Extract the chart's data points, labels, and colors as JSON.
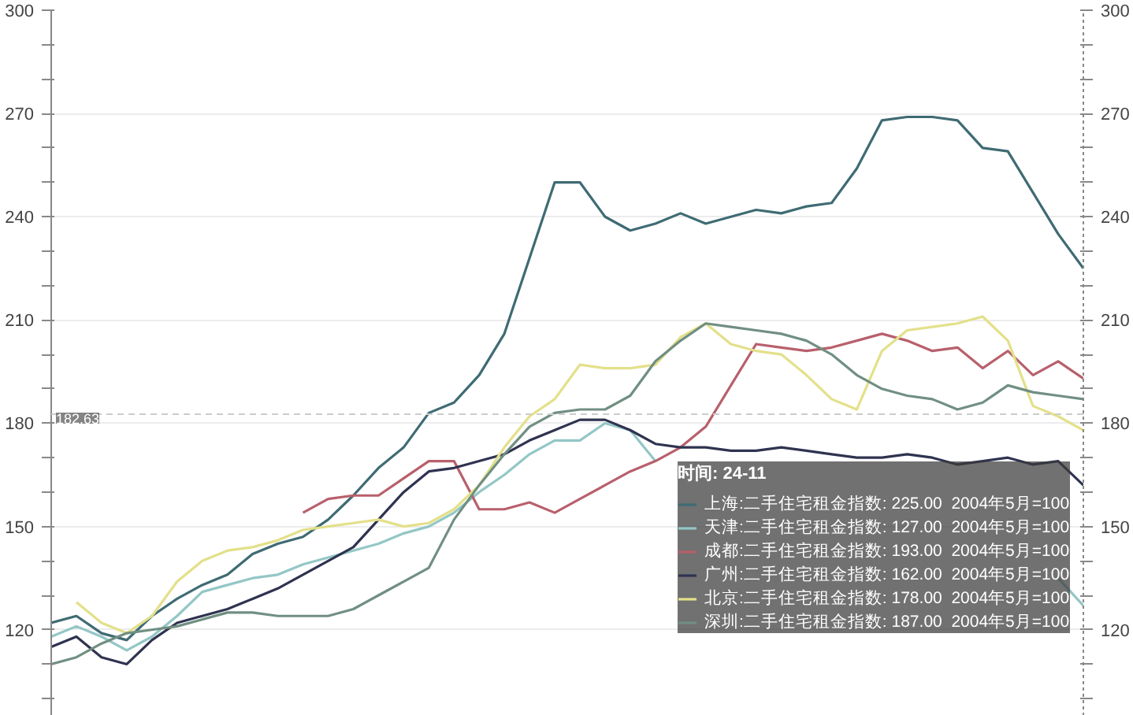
{
  "chart_data": {
    "type": "line",
    "legend_title": "时间: 24-11",
    "categories": [
      null,
      null,
      null,
      null,
      null,
      null,
      null,
      null,
      null,
      null,
      null,
      null,
      null,
      null,
      null,
      null,
      null,
      null,
      null,
      null,
      null,
      null,
      null,
      null,
      null,
      null,
      null,
      null,
      null,
      null,
      null,
      null,
      null,
      null,
      null,
      null,
      null,
      null,
      null,
      null,
      null,
      null
    ],
    "series": [
      {
        "name": "上海:二手住宅租金指数: 225.00  2004年5月=100",
        "color": "#3f6b73",
        "values": [
          122,
          124,
          119,
          117,
          124,
          129,
          133,
          136,
          142,
          145,
          147,
          152,
          159,
          167,
          173,
          183,
          186,
          194,
          206,
          228,
          250,
          250,
          240,
          236,
          238,
          241,
          238,
          240,
          242,
          241,
          243,
          244,
          254,
          268,
          269,
          269,
          268,
          260,
          259,
          247,
          235,
          225
        ]
      },
      {
        "name": "天津:二手住宅租金指数: 127.00  2004年5月=100",
        "color": "#93c7c6",
        "values": [
          118,
          121,
          118,
          114,
          118,
          124,
          131,
          133,
          135,
          136,
          139,
          141,
          143,
          145,
          148,
          150,
          154,
          160,
          165,
          171,
          175,
          175,
          180,
          178,
          169,
          null,
          null,
          null,
          null,
          null,
          null,
          null,
          null,
          null,
          null,
          null,
          null,
          null,
          null,
          null,
          135,
          127
        ]
      },
      {
        "name": "成都:二手住宅租金指数: 193.00  2004年5月=100",
        "color": "#b8606c",
        "values": [
          null,
          null,
          null,
          null,
          null,
          null,
          null,
          null,
          null,
          null,
          154,
          158,
          159,
          159,
          164,
          169,
          169,
          155,
          155,
          157,
          154,
          158,
          162,
          166,
          169,
          173,
          179,
          191,
          203,
          202,
          201,
          202,
          204,
          206,
          204,
          201,
          202,
          196,
          201,
          194,
          198,
          193
        ]
      },
      {
        "name": "广州:二手住宅租金指数: 162.00  2004年5月=100",
        "color": "#2f3350",
        "values": [
          115,
          118,
          112,
          110,
          117,
          122,
          124,
          126,
          129,
          132,
          136,
          140,
          144,
          152,
          160,
          166,
          167,
          169,
          171,
          175,
          178,
          181,
          181,
          178,
          174,
          173,
          173,
          172,
          172,
          173,
          172,
          171,
          170,
          170,
          171,
          170,
          168,
          169,
          170,
          168,
          169,
          162
        ]
      },
      {
        "name": "北京:二手住宅租金指数: 178.00  2004年5月=100",
        "color": "#e3e08a",
        "values": [
          null,
          128,
          122,
          119,
          124,
          134,
          140,
          143,
          144,
          146,
          149,
          150,
          151,
          152,
          150,
          151,
          155,
          162,
          173,
          182,
          187,
          197,
          196,
          196,
          197,
          205,
          209,
          203,
          201,
          200,
          194,
          187,
          184,
          201,
          207,
          208,
          209,
          211,
          204,
          185,
          182,
          178
        ]
      },
      {
        "name": "深圳:二手住宅租金指数: 187.00  2004年5月=100",
        "color": "#708f82",
        "values": [
          110,
          112,
          116,
          119,
          120,
          121,
          123,
          125,
          125,
          124,
          124,
          124,
          126,
          130,
          134,
          138,
          152,
          162,
          171,
          179,
          183,
          184,
          184,
          188,
          198,
          204,
          209,
          208,
          207,
          206,
          204,
          200,
          194,
          190,
          188,
          187,
          184,
          186,
          191,
          189,
          188,
          187
        ]
      }
    ],
    "ylim": [
      95,
      300
    ],
    "yticks": [
      {
        "value": 100,
        "label": null
      },
      {
        "value": 110,
        "label": null
      },
      120,
      {
        "value": 130,
        "label": null
      },
      {
        "value": 140,
        "label": null
      },
      150,
      {
        "value": 160,
        "label": null
      },
      {
        "value": 170,
        "label": null
      },
      180,
      {
        "value": 190,
        "label": null
      },
      {
        "value": 200,
        "label": null
      },
      210,
      {
        "value": 220,
        "label": null
      },
      {
        "value": 230,
        "label": null
      },
      240,
      {
        "value": 250,
        "label": null
      },
      {
        "value": 260,
        "label": null
      },
      270,
      {
        "value": 280,
        "label": null
      },
      {
        "value": 290,
        "label": null
      },
      300
    ],
    "y2lim": [
      95,
      300
    ],
    "y2ticks": [
      {
        "value": 100,
        "label": null
      },
      {
        "value": 110,
        "label": null
      },
      120,
      {
        "value": 130,
        "label": null
      },
      {
        "value": 140,
        "label": null
      },
      150,
      {
        "value": 160,
        "label": null
      },
      {
        "value": 170,
        "label": null
      },
      180,
      {
        "value": 190,
        "label": null
      },
      {
        "value": 200,
        "label": null
      },
      210,
      {
        "value": 220,
        "label": null
      },
      {
        "value": 230,
        "label": null
      },
      240,
      {
        "value": 250,
        "label": null
      },
      {
        "value": 260,
        "label": null
      },
      270,
      {
        "value": 280,
        "label": null
      },
      {
        "value": 290,
        "label": null
      },
      300
    ],
    "ref_lines": [
      {
        "axis": "y",
        "value": 182.63,
        "label": "182.63",
        "line_style": "dashed",
        "color": "#cccccc"
      }
    ],
    "grid": "y",
    "legend": "bottom right",
    "tick_labels": "y",
    "marker": "none",
    "line_style": "solid"
  }
}
